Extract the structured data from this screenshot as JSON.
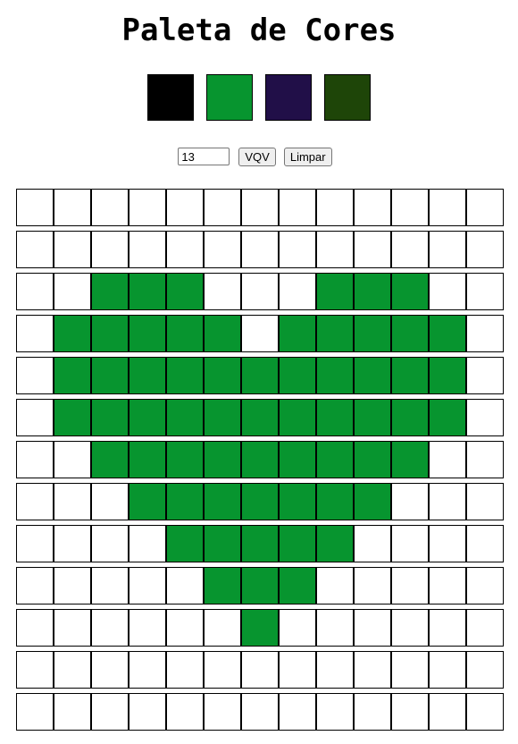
{
  "header": {
    "title": "Paleta de Cores"
  },
  "palette": [
    {
      "name": "black",
      "color": "#000000"
    },
    {
      "name": "green",
      "color": "#07952f"
    },
    {
      "name": "dark-purple",
      "color": "#210f48"
    },
    {
      "name": "dark-green",
      "color": "#1e4508"
    }
  ],
  "controls": {
    "board_size_value": "13",
    "generate_label": "VQV",
    "clear_label": "Limpar"
  },
  "board": {
    "size": 13,
    "fill_color": "#07952f",
    "rows": [
      "0000000000000",
      "0000000000000",
      "0011100011100",
      "0111110111110",
      "0111111111110",
      "0111111111110",
      "0011111111100",
      "0001111111000",
      "0000111110000",
      "0000011100000",
      "0000001000000",
      "0000000000000",
      "0000000000000"
    ]
  }
}
